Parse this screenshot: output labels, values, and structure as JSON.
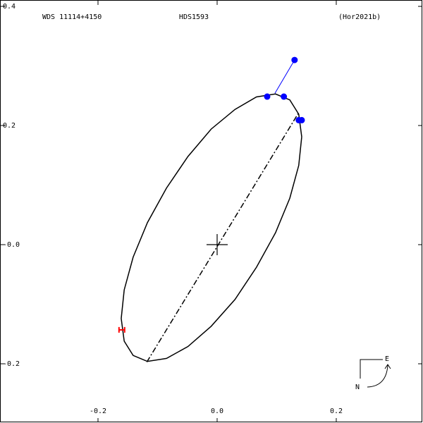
{
  "chart_data": {
    "type": "scatter",
    "title": "HDS1593",
    "annotations": [
      "WDS 11114+4150",
      "(Hor2021b)",
      "E",
      "N"
    ],
    "xlim": [
      -0.3645,
      0.3456
    ],
    "ylim": [
      -0.2994,
      0.4107
    ],
    "xticks": [
      -0.2,
      {
        "value": 0,
        "label": "0.0"
      },
      0.2
    ],
    "yticks": [
      -0.2,
      {
        "value": 0,
        "label": "-0.0"
      },
      0.2,
      0.4
    ],
    "series": [
      {
        "type": "line",
        "color": "#000000",
        "x": [
          0.142,
          0.137,
          0.122,
          0.098,
          0.066,
          0.03,
          -0.01,
          -0.049,
          -0.085,
          -0.117,
          -0.141,
          -0.156,
          -0.161,
          -0.156,
          -0.141,
          -0.117,
          -0.085,
          -0.049,
          -0.01,
          0.03,
          0.066,
          0.098,
          0.122,
          0.137,
          0.142
        ],
        "values": [
          0.181,
          0.219,
          0.243,
          0.253,
          0.248,
          0.227,
          0.194,
          0.148,
          0.095,
          0.037,
          -0.021,
          -0.076,
          -0.124,
          -0.162,
          -0.186,
          -0.196,
          -0.191,
          -0.171,
          -0.137,
          -0.092,
          -0.038,
          0.02,
          0.078,
          0.133,
          0.181
        ]
      },
      {
        "type": "line",
        "color": "#000000",
        "dash": "dashdot",
        "x": [
          -0.118,
          0.136
        ],
        "values": [
          -0.197,
          0.22
        ]
      },
      {
        "type": "line",
        "color": "#0000ff",
        "x": [
          0.13,
          0.097
        ],
        "values": [
          0.31,
          0.254
        ]
      },
      {
        "type": "scatter",
        "color": "#0000ff",
        "marker": "dot",
        "x": [
          0.084,
          0.112,
          0.13,
          0.137,
          0.142
        ],
        "values": [
          0.2485,
          0.2485,
          0.31,
          0.209,
          0.209
        ]
      },
      {
        "type": "scatter",
        "color": "#ff0000",
        "marker": "errorbar",
        "x": [
          -0.16
        ],
        "values": [
          -0.143
        ]
      },
      {
        "type": "scatter",
        "color": "#000000",
        "marker": "plus",
        "x": [
          0
        ],
        "values": [
          0
        ]
      }
    ]
  }
}
